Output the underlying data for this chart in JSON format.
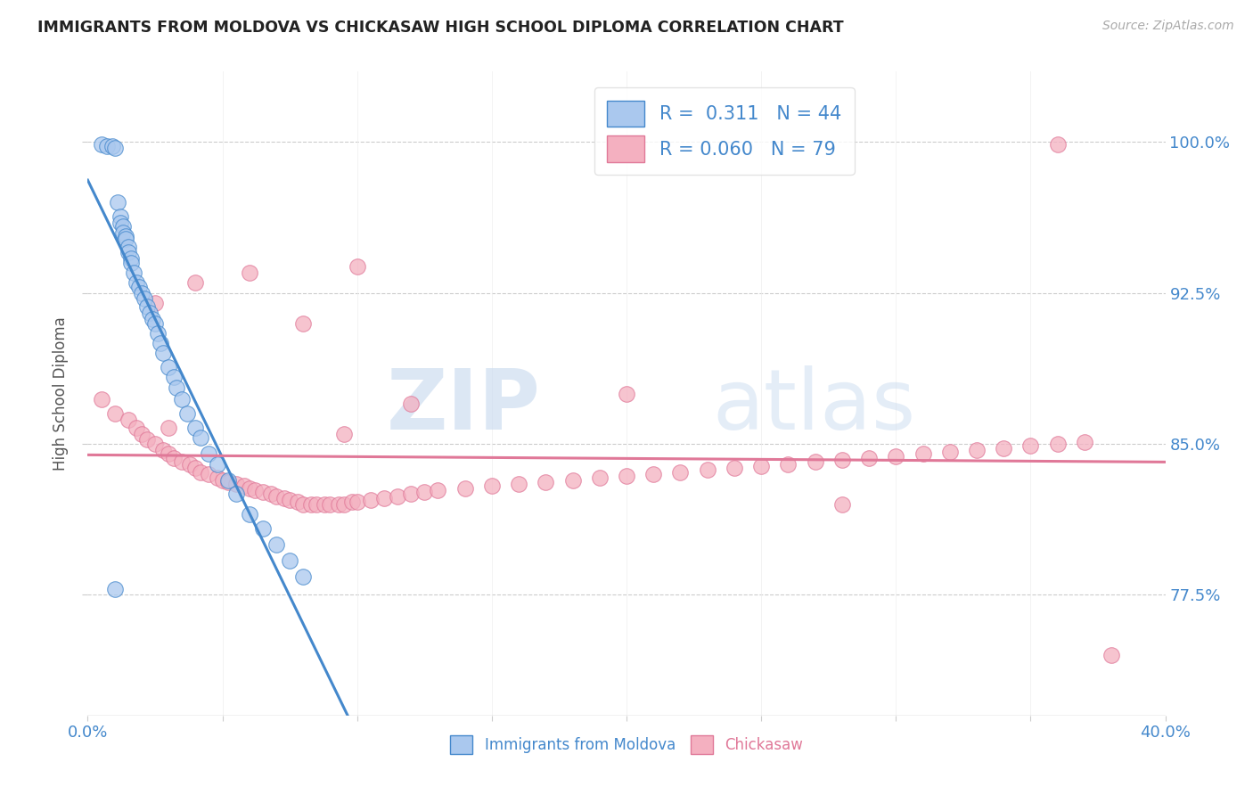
{
  "title": "IMMIGRANTS FROM MOLDOVA VS CHICKASAW HIGH SCHOOL DIPLOMA CORRELATION CHART",
  "source": "Source: ZipAtlas.com",
  "ylabel": "High School Diploma",
  "ylabel_ticks": [
    "77.5%",
    "85.0%",
    "92.5%",
    "100.0%"
  ],
  "ylabel_values": [
    0.775,
    0.85,
    0.925,
    1.0
  ],
  "xlim": [
    0.0,
    0.4
  ],
  "ylim": [
    0.715,
    1.035
  ],
  "legend_blue_R": "0.311",
  "legend_blue_N": "44",
  "legend_pink_R": "0.060",
  "legend_pink_N": "79",
  "legend_label_blue": "Immigrants from Moldova",
  "legend_label_pink": "Chickasaw",
  "blue_scatter_x": [
    0.005,
    0.007,
    0.009,
    0.01,
    0.011,
    0.012,
    0.012,
    0.013,
    0.013,
    0.014,
    0.014,
    0.015,
    0.015,
    0.016,
    0.016,
    0.017,
    0.018,
    0.019,
    0.02,
    0.021,
    0.022,
    0.023,
    0.024,
    0.025,
    0.026,
    0.027,
    0.028,
    0.03,
    0.032,
    0.033,
    0.035,
    0.037,
    0.04,
    0.042,
    0.045,
    0.048,
    0.052,
    0.055,
    0.06,
    0.065,
    0.07,
    0.075,
    0.08,
    0.01
  ],
  "blue_scatter_y": [
    0.999,
    0.998,
    0.998,
    0.997,
    0.97,
    0.963,
    0.96,
    0.958,
    0.955,
    0.953,
    0.952,
    0.948,
    0.945,
    0.942,
    0.94,
    0.935,
    0.93,
    0.928,
    0.925,
    0.922,
    0.918,
    0.915,
    0.912,
    0.91,
    0.905,
    0.9,
    0.895,
    0.888,
    0.883,
    0.878,
    0.872,
    0.865,
    0.858,
    0.853,
    0.845,
    0.84,
    0.832,
    0.825,
    0.815,
    0.808,
    0.8,
    0.792,
    0.784,
    0.778
  ],
  "pink_scatter_x": [
    0.005,
    0.01,
    0.015,
    0.018,
    0.02,
    0.022,
    0.025,
    0.028,
    0.03,
    0.032,
    0.035,
    0.038,
    0.04,
    0.042,
    0.045,
    0.048,
    0.05,
    0.052,
    0.055,
    0.058,
    0.06,
    0.062,
    0.065,
    0.068,
    0.07,
    0.073,
    0.075,
    0.078,
    0.08,
    0.083,
    0.085,
    0.088,
    0.09,
    0.093,
    0.095,
    0.098,
    0.1,
    0.105,
    0.11,
    0.115,
    0.12,
    0.125,
    0.13,
    0.14,
    0.15,
    0.16,
    0.17,
    0.18,
    0.19,
    0.2,
    0.21,
    0.22,
    0.23,
    0.24,
    0.25,
    0.26,
    0.27,
    0.28,
    0.29,
    0.3,
    0.31,
    0.32,
    0.33,
    0.34,
    0.35,
    0.36,
    0.37,
    0.025,
    0.04,
    0.06,
    0.08,
    0.1,
    0.12,
    0.2,
    0.28,
    0.36,
    0.03,
    0.095,
    0.38
  ],
  "pink_scatter_y": [
    0.872,
    0.865,
    0.862,
    0.858,
    0.855,
    0.852,
    0.85,
    0.847,
    0.845,
    0.843,
    0.841,
    0.84,
    0.838,
    0.836,
    0.835,
    0.833,
    0.832,
    0.831,
    0.83,
    0.829,
    0.828,
    0.827,
    0.826,
    0.825,
    0.824,
    0.823,
    0.822,
    0.821,
    0.82,
    0.82,
    0.82,
    0.82,
    0.82,
    0.82,
    0.82,
    0.821,
    0.821,
    0.822,
    0.823,
    0.824,
    0.825,
    0.826,
    0.827,
    0.828,
    0.829,
    0.83,
    0.831,
    0.832,
    0.833,
    0.834,
    0.835,
    0.836,
    0.837,
    0.838,
    0.839,
    0.84,
    0.841,
    0.842,
    0.843,
    0.844,
    0.845,
    0.846,
    0.847,
    0.848,
    0.849,
    0.85,
    0.851,
    0.92,
    0.93,
    0.935,
    0.91,
    0.938,
    0.87,
    0.875,
    0.82,
    0.999,
    0.858,
    0.855,
    0.745
  ],
  "blue_color": "#aac8ee",
  "pink_color": "#f4b0c0",
  "blue_line_color": "#4488cc",
  "pink_line_color": "#e07898",
  "watermark_zip": "ZIP",
  "watermark_atlas": "atlas",
  "background_color": "#ffffff"
}
